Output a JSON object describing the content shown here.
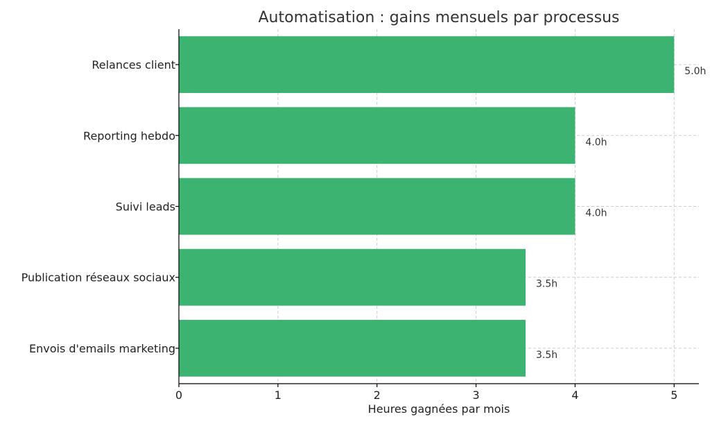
{
  "chart_data": {
    "type": "bar",
    "orientation": "horizontal",
    "title": "Automatisation : gains mensuels par processus",
    "xlabel": "Heures gagnées par mois",
    "ylabel": "",
    "categories": [
      "Relances client",
      "Reporting hebdo",
      "Suivi leads",
      "Publication réseaux sociaux",
      "Envois d'emails marketing"
    ],
    "values": [
      5.0,
      4.0,
      4.0,
      3.5,
      3.5
    ],
    "value_labels": [
      "5.0h",
      "4.0h",
      "4.0h",
      "3.5h",
      "3.5h"
    ],
    "xlim": [
      0,
      5.25
    ],
    "xticks": [
      0,
      1,
      2,
      3,
      4,
      5
    ],
    "grid": true,
    "bar_color": "#3cb371"
  }
}
